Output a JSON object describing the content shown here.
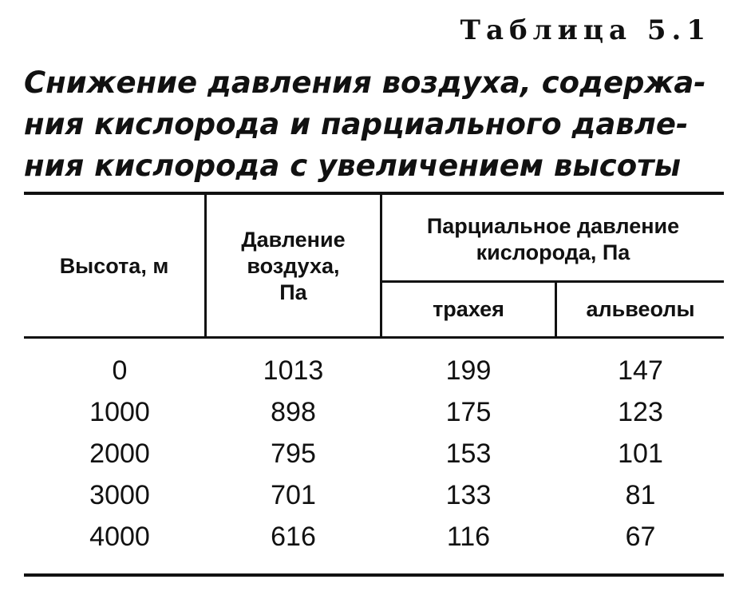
{
  "table_number": "Таблица 5.1",
  "caption_lines": [
    "Снижение давления воздуха, содержа-",
    "ния кислорода и парциального давле-",
    "ния кислорода с увеличением высоты"
  ],
  "headers": {
    "height": "Высота, м",
    "air_pressure": "Давление\nвоздуха,\nПа",
    "partial_pressure": "Парциальное давление\nкислорода, Па",
    "trachea": "трахея",
    "alveoli": "альвеолы"
  },
  "rows": [
    [
      "0",
      "1013",
      "199",
      "147"
    ],
    [
      "1000",
      "898",
      "175",
      "123"
    ],
    [
      "2000",
      "795",
      "153",
      "101"
    ],
    [
      "3000",
      "701",
      "133",
      "81"
    ],
    [
      "4000",
      "616",
      "116",
      "67"
    ]
  ]
}
